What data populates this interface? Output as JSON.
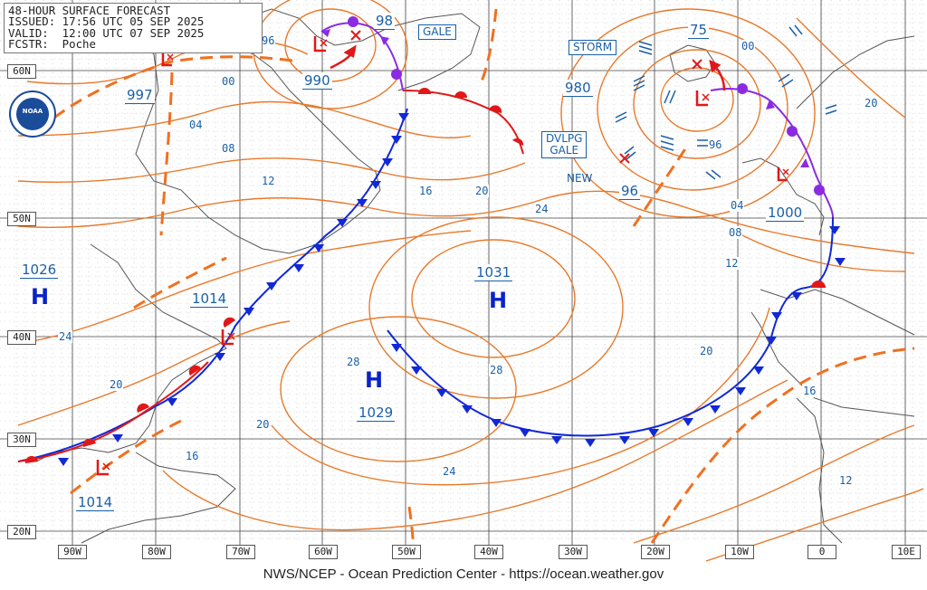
{
  "header": {
    "line1": "48-HOUR SURFACE FORECAST",
    "line2": "ISSUED: 17:56 UTC 05 SEP 2025",
    "line3": "VALID:  12:00 UTC 07 SEP 2025",
    "line4": "FCSTR:  Poche"
  },
  "footer": "NWS/NCEP - Ocean Prediction Center - https://ocean.weather.gov",
  "logo_text": "NOAA",
  "lat_labels": [
    "60N",
    "50N",
    "40N",
    "30N",
    "20N"
  ],
  "lon_labels": [
    "90W",
    "80W",
    "70W",
    "60W",
    "50W",
    "40W",
    "30W",
    "20W",
    "10W",
    "0",
    "10E"
  ],
  "pressure_centers": [
    {
      "type": "L",
      "value": "997"
    },
    {
      "type": "L",
      "value": "990"
    },
    {
      "type": "L",
      "value": "98"
    },
    {
      "type": "L",
      "value": "975"
    },
    {
      "type": "L",
      "value": "980"
    },
    {
      "type": "L",
      "value": "96"
    },
    {
      "type": "L",
      "value": "1000"
    },
    {
      "type": "L",
      "value": "1014"
    },
    {
      "type": "L",
      "value": "1014"
    },
    {
      "type": "H",
      "value": "1026"
    },
    {
      "type": "H",
      "value": "1031"
    },
    {
      "type": "H",
      "value": "1029"
    }
  ],
  "pressure_labels": {
    "p997": "997",
    "p990": "990",
    "p98": "98",
    "p75": "75",
    "p980": "980",
    "p96": "96",
    "p1000": "1000",
    "p1014a": "1014",
    "p1014b": "1014",
    "p1026": "1026",
    "p1031": "1031",
    "p1029": "1029"
  },
  "high_letter": "H",
  "isobar_labels": {
    "i96a": "96",
    "i00a": "00",
    "i04a": "04",
    "i08a": "08",
    "i12a": "12",
    "i16a": "16",
    "i20a": "20",
    "i24a": "24",
    "i00b": "00",
    "i20b": "20",
    "i96b": "96",
    "i04b": "04",
    "i08b": "08",
    "i12b": "12",
    "i24b": "24",
    "i20c": "20",
    "i28a": "28",
    "i28b": "28",
    "i20d": "20",
    "i24c": "24",
    "i16b": "16",
    "i20e": "20",
    "i16c": "16",
    "i12c": "12",
    "i24d": "24"
  },
  "warnings": {
    "gale": "GALE",
    "storm": "STORM",
    "dvlpg1": "DVLPG",
    "dvlpg2": "GALE",
    "new": "NEW"
  },
  "colors": {
    "isobar": "#e8792a",
    "trough": "#f07020",
    "cold_front": "#1028d8",
    "warm_front": "#e01818",
    "occluded_front": "#8a2be2",
    "label_blue": "#1a5fa8",
    "land": "#666666",
    "grid": "#555555"
  }
}
